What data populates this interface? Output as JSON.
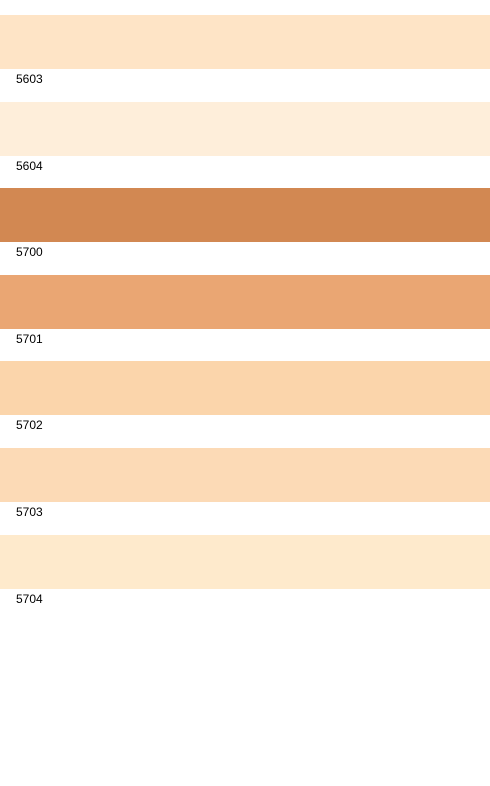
{
  "swatches": [
    {
      "code": "5603",
      "color": "#FEE4C6"
    },
    {
      "code": "5604",
      "color": "#FEEEDA"
    },
    {
      "code": "5700",
      "color": "#D28852"
    },
    {
      "code": "5701",
      "color": "#EAA673"
    },
    {
      "code": "5702",
      "color": "#FBD5AB"
    },
    {
      "code": "5703",
      "color": "#FCDAB6"
    },
    {
      "code": "5704",
      "color": "#FEEACC"
    }
  ]
}
